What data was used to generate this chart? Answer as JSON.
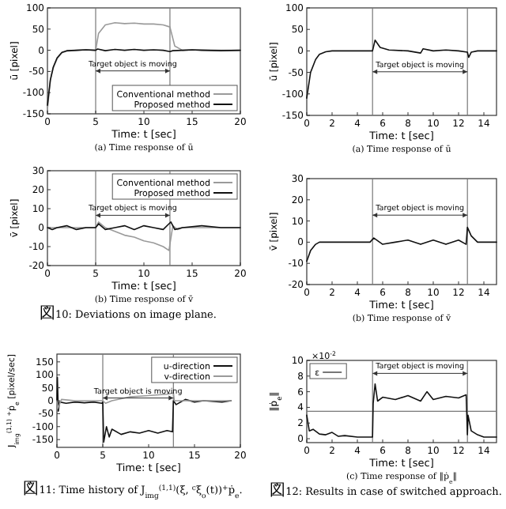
{
  "chart_data": [
    {
      "type": "line",
      "subtitle": "(a) Time response of ū",
      "xlabel": "Time: t [sec]",
      "ylabel": "ū [pixel]",
      "xlim": [
        0,
        20
      ],
      "ylim": [
        -150,
        100
      ],
      "xticks": [
        0,
        5,
        10,
        15,
        20
      ],
      "yticks": [
        -150,
        -100,
        -50,
        0,
        50,
        100
      ],
      "legend": "bottom right",
      "series": [
        {
          "name": "Conventional method",
          "color": "#9a9a9a",
          "x": [
            0,
            0.3,
            0.6,
            1,
            1.5,
            2,
            3,
            4,
            5,
            5.3,
            6,
            7,
            8,
            9,
            10,
            11,
            12,
            12.7,
            13.2,
            14,
            16,
            18,
            20
          ],
          "values": [
            -140,
            -72,
            -42,
            -20,
            -6,
            -2,
            0,
            1,
            0,
            40,
            60,
            65,
            63,
            64,
            62,
            62,
            60,
            55,
            10,
            0,
            1,
            0,
            0
          ]
        },
        {
          "name": "Proposed method",
          "color": "#111111",
          "x": [
            0,
            0.3,
            0.6,
            1,
            1.5,
            2,
            3,
            4,
            5,
            5.2,
            6,
            7,
            8,
            9,
            10,
            11,
            12,
            12.7,
            13,
            14,
            15,
            16,
            18,
            20
          ],
          "values": [
            -130,
            -70,
            -40,
            -18,
            -5,
            -1,
            0,
            1,
            0,
            3,
            -1,
            2,
            0,
            2,
            0,
            1,
            0,
            -3,
            -1,
            0,
            1,
            0,
            -1,
            0
          ]
        }
      ],
      "ref_lines": [
        {
          "axis": "x",
          "value": 5,
          "label": null,
          "color": "#777777"
        },
        {
          "axis": "x",
          "value": 12.7,
          "label": null,
          "color": "#777777"
        }
      ],
      "annotations": [
        "Target object is moving"
      ]
    },
    {
      "type": "line",
      "subtitle": "(b) Time response of v̄",
      "xlabel": "Time: t [sec]",
      "ylabel": "v̄ [pixel]",
      "xlim": [
        0,
        20
      ],
      "ylim": [
        -20,
        30
      ],
      "xticks": [
        0,
        5,
        10,
        15,
        20
      ],
      "yticks": [
        -20,
        -10,
        0,
        10,
        20,
        30
      ],
      "legend": "top right",
      "series": [
        {
          "name": "Conventional method",
          "color": "#9a9a9a",
          "x": [
            0,
            1,
            2,
            3,
            4,
            5,
            5.3,
            6,
            7,
            8,
            9,
            10,
            11,
            12,
            12.6,
            13,
            13.5,
            14,
            16,
            18,
            20
          ],
          "values": [
            0,
            0,
            0,
            0,
            0,
            0,
            3,
            0,
            -2,
            -4,
            -5,
            -7,
            -8,
            -10,
            -12,
            1,
            -1,
            0,
            0,
            0,
            0
          ]
        },
        {
          "name": "Proposed method",
          "color": "#111111",
          "x": [
            0,
            0.5,
            1,
            2,
            3,
            4,
            5,
            5.3,
            6,
            7,
            8,
            9,
            10,
            11,
            12,
            12.8,
            13.2,
            14,
            16,
            18,
            20
          ],
          "values": [
            0,
            -1,
            0,
            1,
            -1,
            0,
            0,
            2,
            -1,
            0,
            1,
            -1,
            1,
            0,
            -1,
            3,
            -1,
            0,
            1,
            0,
            0
          ]
        }
      ],
      "ref_lines": [
        {
          "axis": "x",
          "value": 5,
          "label": null,
          "color": "#777777"
        },
        {
          "axis": "x",
          "value": 12.7,
          "label": null,
          "color": "#777777"
        }
      ],
      "annotations": [
        "Target object is moving",
        "図10: Deviations on image plane."
      ]
    },
    {
      "type": "line",
      "xlabel": "Time: t [sec]",
      "ylabel": "J$_{img}$$^{(1,1)}$ $^{+}$ṗ$_{e}$ [pixel/sec]",
      "xlim": [
        0,
        20
      ],
      "ylim": [
        -180,
        180
      ],
      "xticks": [
        0,
        5,
        10,
        15,
        20
      ],
      "yticks": [
        -150,
        -100,
        -50,
        0,
        50,
        100,
        150
      ],
      "legend": "top right",
      "series": [
        {
          "name": "u-direction",
          "color": "#111111",
          "x": [
            0,
            0.05,
            0.15,
            0.3,
            1,
            2,
            3,
            4,
            4.9,
            5,
            5.1,
            5.4,
            5.7,
            6,
            7,
            8,
            9,
            10,
            11,
            12,
            12.6,
            12.7,
            13,
            13.5,
            14,
            15,
            16,
            18,
            19
          ],
          "values": [
            0,
            90,
            -40,
            -5,
            -10,
            -5,
            -8,
            -5,
            -10,
            -5,
            -160,
            -100,
            -140,
            -110,
            -130,
            -120,
            -125,
            -115,
            -125,
            -115,
            -120,
            0,
            -15,
            -5,
            5,
            -5,
            0,
            -5,
            0
          ]
        },
        {
          "name": "v-direction",
          "color": "#9a9a9a",
          "x": [
            0,
            0.1,
            0.5,
            2,
            4,
            5,
            5.3,
            6,
            8,
            10,
            12,
            12.7,
            12.8,
            14,
            16,
            19
          ],
          "values": [
            0,
            -30,
            5,
            0,
            0,
            0,
            -10,
            0,
            15,
            20,
            25,
            30,
            0,
            0,
            0,
            0
          ]
        }
      ],
      "ref_lines": [
        {
          "axis": "x",
          "value": 5,
          "label": null,
          "color": "#777777"
        },
        {
          "axis": "x",
          "value": 12.7,
          "label": null,
          "color": "#777777"
        }
      ],
      "annotations": [
        "Target object is moving",
        "図11: Time history of J$_{img}$$^{(1,1)}$(ξ, $^{c}$ξ$_{o}$(t))$^{+}$ṗ$_{e}$."
      ]
    },
    {
      "type": "line",
      "subtitle": "(a) Time response of ū",
      "xlabel": "Time: t [sec]",
      "ylabel": "ū [pixel]",
      "xlim": [
        0,
        15
      ],
      "ylim": [
        -150,
        100
      ],
      "xticks": [
        0,
        2,
        4,
        6,
        8,
        10,
        12,
        14
      ],
      "yticks": [
        -150,
        -100,
        -50,
        0,
        50,
        100
      ],
      "series": [
        {
          "color": "#111111",
          "x": [
            0,
            0.3,
            0.7,
            1,
            1.5,
            2,
            5,
            5.2,
            5.4,
            5.8,
            6.5,
            8,
            9,
            9.2,
            10,
            11,
            12,
            12.7,
            12.8,
            13,
            13.5,
            15
          ],
          "values": [
            -110,
            -50,
            -20,
            -8,
            -2,
            0,
            0,
            0,
            25,
            8,
            2,
            0,
            -5,
            5,
            0,
            2,
            0,
            -3,
            -15,
            -3,
            0,
            0
          ]
        }
      ],
      "ref_lines": [
        {
          "axis": "x",
          "value": 5.2,
          "label": null,
          "color": "#777777"
        },
        {
          "axis": "x",
          "value": 12.7,
          "label": null,
          "color": "#777777"
        }
      ],
      "annotations": [
        "Target object is moving"
      ]
    },
    {
      "type": "line",
      "subtitle": "(b) Time response of v̄",
      "xlabel": "Time: t [sec]",
      "ylabel": "v̄ [pixel]",
      "xlim": [
        0,
        15
      ],
      "ylim": [
        -20,
        30
      ],
      "xticks": [
        0,
        2,
        4,
        6,
        8,
        10,
        12,
        14
      ],
      "yticks": [
        -20,
        -10,
        0,
        10,
        20,
        30
      ],
      "series": [
        {
          "color": "#111111",
          "x": [
            0,
            0.3,
            0.7,
            1,
            5,
            5.3,
            6,
            7,
            8,
            9,
            10,
            11,
            12,
            12.6,
            12.7,
            13,
            13.5,
            15
          ],
          "values": [
            -9,
            -4,
            -1,
            0,
            0,
            2,
            -1,
            0,
            1,
            -1,
            1,
            -1,
            1,
            -1,
            7,
            3,
            0,
            0
          ]
        }
      ],
      "ref_lines": [
        {
          "axis": "x",
          "value": 5.2,
          "label": null,
          "color": "#777777"
        },
        {
          "axis": "x",
          "value": 12.7,
          "label": null,
          "color": "#777777"
        }
      ],
      "annotations": [
        "Target object is moving"
      ]
    },
    {
      "type": "line",
      "subtitle": "(c) Time response of ‖ṗ$_{e}$‖",
      "xlabel": "Time: t [sec]",
      "ylabel": "‖ṗ$_{e}$‖",
      "xlim": [
        0,
        15
      ],
      "ylim": [
        -0.5,
        10
      ],
      "xticks": [
        0,
        2,
        4,
        6,
        8,
        10,
        12,
        14
      ],
      "yticks": [
        0,
        2,
        4,
        6,
        8,
        10
      ],
      "legend": "top left",
      "series": [
        {
          "color": "#111111",
          "x": [
            0,
            0.2,
            0.5,
            1,
            1.5,
            2,
            2.5,
            3,
            4,
            5.2,
            5.25,
            5.4,
            5.6,
            6,
            7,
            8,
            9,
            9.5,
            10,
            11,
            12,
            12.6,
            12.7,
            12.75,
            13,
            13.5,
            14,
            15
          ],
          "values": [
            3,
            1,
            1.2,
            0.6,
            0.5,
            0.8,
            0.3,
            0.4,
            0.2,
            0.2,
            4.5,
            7,
            4.8,
            5.3,
            5,
            5.5,
            4.8,
            6,
            5,
            5.4,
            5.2,
            5.6,
            0.5,
            3,
            1,
            0.5,
            0.2,
            0.2
          ]
        }
      ],
      "ref_lines": [
        {
          "axis": "x",
          "value": 5.2,
          "label": null,
          "color": "#777777"
        },
        {
          "axis": "x",
          "value": 12.7,
          "label": null,
          "color": "#777777"
        },
        {
          "axis": "y",
          "value": 3.5,
          "label": "ε",
          "color": "#777777"
        }
      ],
      "annotations": [
        "Target object is moving",
        "×10$^{-2}$",
        "図12: Results in case of switched approach."
      ]
    }
  ]
}
